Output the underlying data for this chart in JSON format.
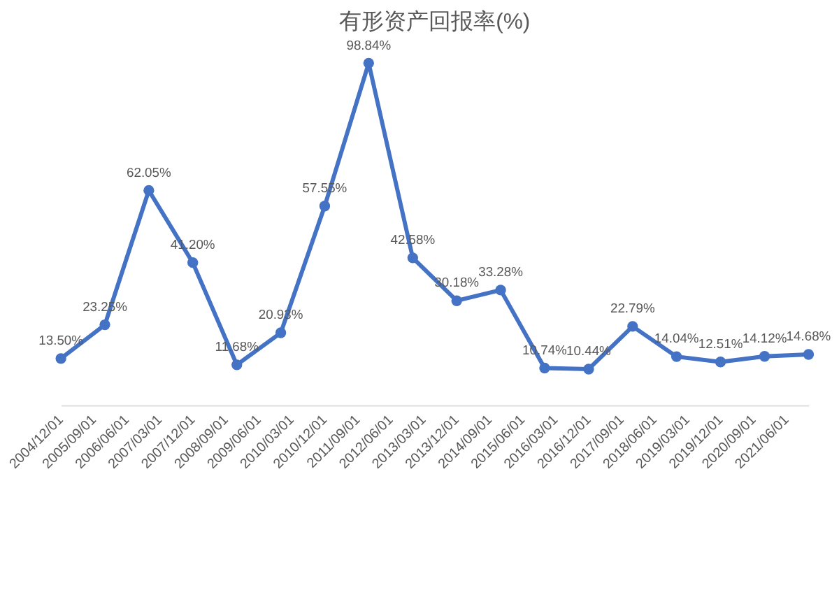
{
  "chart_data": {
    "type": "line",
    "title": "有形资产回报率(%)",
    "x": [
      "2004-12-01",
      "2005-12-01",
      "2006-12-01",
      "2007-12-01",
      "2008-12-01",
      "2009-12-01",
      "2010-12-01",
      "2011-12-01",
      "2012-12-01",
      "2013-12-01",
      "2014-12-01",
      "2015-12-01",
      "2016-12-01",
      "2017-12-01",
      "2018-12-01",
      "2019-12-01",
      "2020-12-01",
      "2021-12-01"
    ],
    "series": [
      {
        "color": "#4472c4",
        "values": [
          13.5,
          23.25,
          62.05,
          41.2,
          11.68,
          20.93,
          57.55,
          98.84,
          42.58,
          30.18,
          33.28,
          10.74,
          10.44,
          22.79,
          14.04,
          12.51,
          14.12,
          14.68
        ],
        "value_labels": [
          "13.50%",
          "23.25%",
          "62.05%",
          "41.20%",
          "11.68%",
          "20.93%",
          "57.55%",
          "98.84%",
          "42.58%",
          "30.18%",
          "33.28%",
          "10.74%",
          "10.44%",
          "22.79%",
          "14.04%",
          "12.51%",
          "14.12%",
          "14.68%"
        ]
      }
    ],
    "xlim": [
      "2004-12-01",
      "2021-12-01"
    ],
    "xticks": [
      {
        "value": "2004-12-01",
        "label": "2004/12/01"
      },
      {
        "value": "2005-09-01",
        "label": "2005/09/01"
      },
      {
        "value": "2006-06-01",
        "label": "2006/06/01"
      },
      {
        "value": "2007-03-01",
        "label": "2007/03/01"
      },
      {
        "value": "2007-12-01",
        "label": "2007/12/01"
      },
      {
        "value": "2008-09-01",
        "label": "2008/09/01"
      },
      {
        "value": "2009-06-01",
        "label": "2009/06/01"
      },
      {
        "value": "2010-03-01",
        "label": "2010/03/01"
      },
      {
        "value": "2010-12-01",
        "label": "2010/12/01"
      },
      {
        "value": "2011-09-01",
        "label": "2011/09/01"
      },
      {
        "value": "2012-06-01",
        "label": "2012/06/01"
      },
      {
        "value": "2013-03-01",
        "label": "2013/03/01"
      },
      {
        "value": "2013-12-01",
        "label": "2013/12/01"
      },
      {
        "value": "2014-09-01",
        "label": "2014/09/01"
      },
      {
        "value": "2015-06-01",
        "label": "2015/06/01"
      },
      {
        "value": "2016-03-01",
        "label": "2016/03/01"
      },
      {
        "value": "2016-12-01",
        "label": "2016/12/01"
      },
      {
        "value": "2017-09-01",
        "label": "2017/09/01"
      },
      {
        "value": "2018-06-01",
        "label": "2018/06/01"
      },
      {
        "value": "2019-03-01",
        "label": "2019/03/01"
      },
      {
        "value": "2019-12-01",
        "label": "2019/12/01"
      },
      {
        "value": "2020-09-01",
        "label": "2020/09/01"
      },
      {
        "value": "2021-06-01",
        "label": "2021/06/01"
      }
    ],
    "tick_labels": "x",
    "marker": "circle",
    "grid": false
  }
}
